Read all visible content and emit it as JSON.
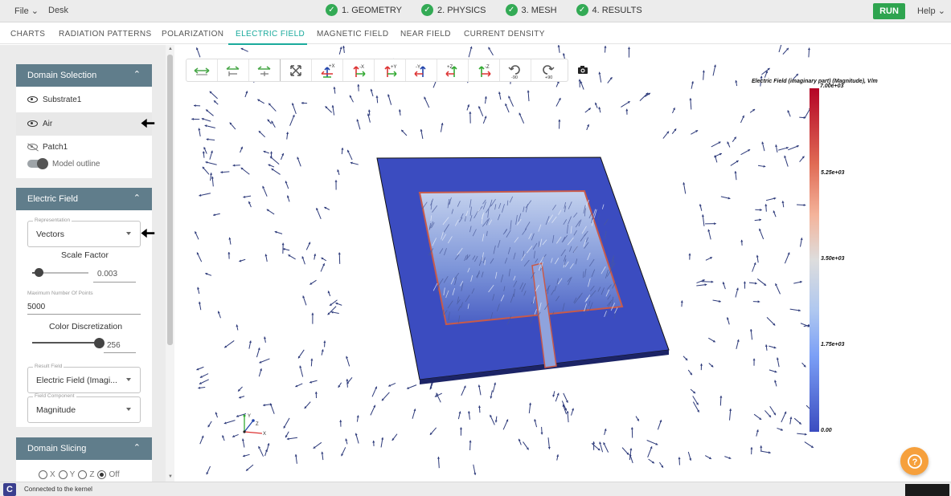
{
  "menu": {
    "file": "File",
    "desk": "Desk",
    "help": "Help"
  },
  "steps": [
    {
      "label": "1. GEOMETRY"
    },
    {
      "label": "2. PHYSICS"
    },
    {
      "label": "3. MESH"
    },
    {
      "label": "4. RESULTS"
    }
  ],
  "run_label": "RUN",
  "tabs": [
    "CHARTS",
    "RADIATION PATTERNS",
    "POLARIZATION",
    "ELECTRIC FIELD",
    "MAGNETIC FIELD",
    "NEAR FIELD",
    "CURRENT DENSITY"
  ],
  "active_tab": "ELECTRIC FIELD",
  "domain_selection": {
    "title": "Domain Solection",
    "items": [
      {
        "label": "Substrate1",
        "visible": true
      },
      {
        "label": "Air",
        "visible": true,
        "selected": true
      },
      {
        "label": "Patch1",
        "visible": false
      }
    ],
    "model_outline_label": "Model outline"
  },
  "electric_field": {
    "title": "Electric Field",
    "representation_label": "Representation",
    "representation_value": "Vectors",
    "scale_factor_label": "Scale Factor",
    "scale_factor_value": "0.003",
    "max_points_label": "Maximum Number Of Points",
    "max_points_value": "5000",
    "color_disc_label": "Color Discretization",
    "color_disc_value": "256",
    "result_field_label": "Result Field",
    "result_field_value": "Electric Field (Imagi...",
    "field_component_label": "Field Component",
    "field_component_value": "Magnitude"
  },
  "domain_slicing": {
    "title": "Domain Slicing",
    "options": [
      "X",
      "Y",
      "Z",
      "Off"
    ],
    "selected": "Off"
  },
  "toolbar_buttons": [
    {
      "icon": "fit-width-icon",
      "label": ""
    },
    {
      "icon": "fit-height-icon",
      "label": ""
    },
    {
      "icon": "fit-depth-icon",
      "label": ""
    },
    {
      "icon": "fit-all-icon",
      "label": ""
    },
    {
      "icon": "view-plus-x-icon",
      "label": "+X"
    },
    {
      "icon": "view-minus-x-icon",
      "label": "-X"
    },
    {
      "icon": "view-plus-y-icon",
      "label": "+Y"
    },
    {
      "icon": "view-minus-y-icon",
      "label": "-Y"
    },
    {
      "icon": "view-plus-z-icon",
      "label": "+Z"
    },
    {
      "icon": "view-minus-z-icon",
      "label": "-Z"
    },
    {
      "icon": "rotate-ccw-icon",
      "label": "-90"
    },
    {
      "icon": "rotate-cw-icon",
      "label": "+90"
    }
  ],
  "legend": {
    "title": "Electric Field (imaginary part) (Magnitude), V/m",
    "ticks": [
      "7.00e+03",
      "5.25e+03",
      "3.50e+03",
      "1.75e+03",
      "0.00"
    ]
  },
  "axes_labels": {
    "x": "X",
    "y": "Y",
    "z": "Z"
  },
  "status_text": "Connected to the kernel",
  "colors": {
    "accent": "#1aaa9c",
    "panel_header": "#607d8b",
    "run": "#2ea44f",
    "check": "#33aa55",
    "help_fab": "#f6a03c"
  }
}
